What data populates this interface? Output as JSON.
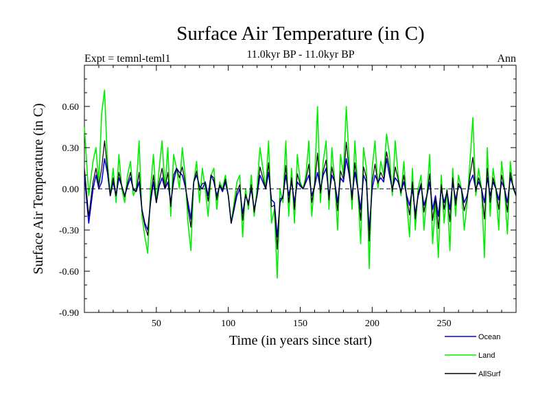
{
  "chart_data": {
    "type": "line",
    "title": "Surface Air Temperature (in C)",
    "subtitle": "11.0kyr BP - 11.0kyr BP",
    "left_label": "Expt = temnl-teml1",
    "right_label": "Ann",
    "xlabel": "Time (in years since start)",
    "ylabel": "Surface Air Temperature (in C)",
    "xlim": [
      0,
      300
    ],
    "ylim": [
      -0.9,
      0.9
    ],
    "x_ticks": [
      50,
      100,
      150,
      200,
      250
    ],
    "x_tick_labels": [
      "50",
      "100",
      "150",
      "200",
      "250"
    ],
    "y_ticks": [
      -0.9,
      -0.6,
      -0.3,
      0.0,
      0.3,
      0.6
    ],
    "y_tick_labels": [
      "-0.90",
      "-0.60",
      "-0.30",
      "0.00",
      "0.30",
      "0.60"
    ],
    "zero_line": true,
    "legend_position": "bottom-right",
    "series": [
      {
        "name": "Land",
        "color": "#00ee00",
        "x": [
          0,
          3,
          6,
          8,
          10,
          12,
          14,
          16,
          18,
          20,
          22,
          24,
          26,
          28,
          30,
          32,
          34,
          36,
          38,
          40,
          42,
          44,
          46,
          48,
          50,
          52,
          54,
          56,
          58,
          60,
          62,
          64,
          66,
          68,
          70,
          72,
          74,
          76,
          78,
          80,
          82,
          84,
          86,
          88,
          90,
          92,
          94,
          96,
          98,
          100,
          102,
          104,
          106,
          108,
          110,
          112,
          114,
          116,
          118,
          120,
          122,
          124,
          126,
          128,
          130,
          132,
          134,
          136,
          138,
          140,
          142,
          144,
          146,
          148,
          150,
          152,
          154,
          156,
          158,
          160,
          162,
          164,
          166,
          168,
          170,
          172,
          174,
          176,
          178,
          180,
          182,
          184,
          186,
          188,
          190,
          192,
          194,
          196,
          198,
          200,
          202,
          204,
          206,
          208,
          210,
          212,
          214,
          216,
          218,
          220,
          222,
          224,
          226,
          228,
          230,
          232,
          234,
          236,
          238,
          240,
          242,
          244,
          246,
          248,
          250,
          252,
          254,
          256,
          258,
          260,
          262,
          264,
          266,
          268,
          270,
          272,
          274,
          276,
          278,
          280,
          282,
          284,
          286,
          288,
          290,
          292,
          294,
          296,
          298,
          300
        ],
        "values": [
          0.45,
          -0.05,
          0.2,
          0.3,
          0.05,
          0.55,
          0.72,
          0.2,
          -0.05,
          0.15,
          -0.1,
          0.25,
          0.0,
          -0.1,
          0.1,
          0.2,
          -0.05,
          0.0,
          0.35,
          -0.2,
          -0.35,
          -0.47,
          0.0,
          0.25,
          -0.1,
          0.15,
          0.35,
          0.0,
          0.3,
          -0.2,
          0.25,
          0.15,
          0.0,
          0.3,
          0.1,
          -0.25,
          -0.45,
          0.05,
          0.2,
          -0.1,
          0.15,
          0.0,
          -0.2,
          0.1,
          0.15,
          -0.15,
          0.05,
          0.0,
          0.1,
          -0.05,
          -0.25,
          -0.1,
          0.05,
          0.1,
          -0.35,
          0.0,
          -0.15,
          0.1,
          -0.2,
          0.0,
          0.3,
          0.15,
          0.0,
          0.35,
          -0.25,
          -0.15,
          -0.65,
          0.0,
          -0.1,
          0.35,
          -0.2,
          0.15,
          -0.25,
          0.25,
          0.05,
          0.0,
          0.1,
          0.35,
          -0.2,
          0.05,
          0.6,
          -0.1,
          0.2,
          0.35,
          -0.15,
          0.3,
          0.05,
          -0.3,
          0.25,
          0.1,
          0.6,
          0.2,
          -0.15,
          0.35,
          0.0,
          -0.4,
          0.3,
          0.15,
          -0.58,
          0.15,
          0.35,
          0.0,
          0.2,
          0.1,
          0.4,
          0.25,
          -0.05,
          0.35,
          0.1,
          -0.05,
          0.2,
          -0.1,
          -0.35,
          0.15,
          -0.3,
          0.0,
          0.1,
          -0.3,
          -0.05,
          0.25,
          -0.4,
          -0.1,
          -0.5,
          0.1,
          -0.25,
          0.0,
          -0.45,
          0.15,
          -0.2,
          0.1,
          0.0,
          -0.3,
          -0.1,
          0.2,
          0.52,
          -0.05,
          0.15,
          0.0,
          -0.5,
          0.3,
          -0.2,
          0.15,
          0.0,
          -0.3,
          0.2,
          0.0,
          -0.33,
          0.2,
          0.0,
          -0.05
        ]
      },
      {
        "name": "Ocean",
        "color": "#0000dd",
        "x": [
          0,
          3,
          6,
          8,
          10,
          12,
          14,
          16,
          18,
          20,
          22,
          24,
          26,
          28,
          30,
          32,
          34,
          36,
          38,
          40,
          42,
          44,
          46,
          48,
          50,
          52,
          54,
          56,
          58,
          60,
          62,
          64,
          66,
          68,
          70,
          72,
          74,
          76,
          78,
          80,
          82,
          84,
          86,
          88,
          90,
          92,
          94,
          96,
          98,
          100,
          102,
          104,
          106,
          108,
          110,
          112,
          114,
          116,
          118,
          120,
          122,
          124,
          126,
          128,
          130,
          132,
          134,
          136,
          138,
          140,
          142,
          144,
          146,
          148,
          150,
          152,
          154,
          156,
          158,
          160,
          162,
          164,
          166,
          168,
          170,
          172,
          174,
          176,
          178,
          180,
          182,
          184,
          186,
          188,
          190,
          192,
          194,
          196,
          198,
          200,
          202,
          204,
          206,
          208,
          210,
          212,
          214,
          216,
          218,
          220,
          222,
          224,
          226,
          228,
          230,
          232,
          234,
          236,
          238,
          240,
          242,
          244,
          246,
          248,
          250,
          252,
          254,
          256,
          258,
          260,
          262,
          264,
          266,
          268,
          270,
          272,
          274,
          276,
          278,
          280,
          282,
          284,
          286,
          288,
          290,
          292,
          294,
          296,
          298,
          300
        ],
        "values": [
          0.1,
          -0.25,
          0.0,
          0.1,
          0.0,
          0.05,
          0.22,
          0.12,
          -0.05,
          0.05,
          -0.05,
          0.08,
          0.02,
          -0.05,
          0.02,
          0.08,
          0.0,
          -0.02,
          0.05,
          -0.15,
          -0.25,
          -0.3,
          -0.1,
          0.05,
          -0.1,
          0.02,
          0.08,
          0.0,
          0.05,
          -0.1,
          0.05,
          0.15,
          0.12,
          0.1,
          0.02,
          -0.1,
          -0.22,
          0.05,
          0.1,
          0.02,
          0.0,
          0.05,
          -0.05,
          0.1,
          0.05,
          -0.05,
          0.02,
          -0.02,
          0.05,
          -0.05,
          -0.25,
          -0.15,
          -0.05,
          0.0,
          -0.18,
          -0.05,
          -0.1,
          0.0,
          -0.15,
          -0.05,
          0.1,
          0.05,
          0.0,
          0.12,
          -0.08,
          -0.1,
          -0.35,
          -0.1,
          -0.05,
          0.1,
          -0.05,
          0.05,
          -0.1,
          0.05,
          0.02,
          0.0,
          0.05,
          0.1,
          -0.05,
          0.02,
          0.12,
          0.0,
          0.1,
          0.15,
          -0.05,
          0.1,
          0.05,
          -0.1,
          0.08,
          0.05,
          0.22,
          0.1,
          -0.05,
          0.12,
          0.0,
          -0.15,
          0.1,
          0.05,
          -0.3,
          0.0,
          0.1,
          0.05,
          0.08,
          0.05,
          0.22,
          0.1,
          0.0,
          0.08,
          0.05,
          -0.02,
          0.05,
          -0.05,
          -0.12,
          0.0,
          -0.18,
          -0.05,
          0.02,
          -0.12,
          -0.05,
          0.05,
          -0.15,
          -0.05,
          -0.2,
          0.0,
          -0.1,
          -0.02,
          -0.15,
          0.05,
          -0.08,
          0.02,
          0.0,
          -0.1,
          -0.05,
          0.05,
          0.1,
          0.0,
          0.05,
          0.0,
          -0.1,
          0.08,
          -0.05,
          0.05,
          0.0,
          -0.08,
          0.05,
          0.0,
          -0.1,
          0.08,
          0.02,
          -0.05
        ]
      },
      {
        "name": "AllSurf",
        "color": "#000000",
        "x": [
          0,
          3,
          6,
          8,
          10,
          12,
          14,
          16,
          18,
          20,
          22,
          24,
          26,
          28,
          30,
          32,
          34,
          36,
          38,
          40,
          42,
          44,
          46,
          48,
          50,
          52,
          54,
          56,
          58,
          60,
          62,
          64,
          66,
          68,
          70,
          72,
          74,
          76,
          78,
          80,
          82,
          84,
          86,
          88,
          90,
          92,
          94,
          96,
          98,
          100,
          102,
          104,
          106,
          108,
          110,
          112,
          114,
          116,
          118,
          120,
          122,
          124,
          126,
          128,
          130,
          132,
          134,
          136,
          138,
          140,
          142,
          144,
          146,
          148,
          150,
          152,
          154,
          156,
          158,
          160,
          162,
          164,
          166,
          168,
          170,
          172,
          174,
          176,
          178,
          180,
          182,
          184,
          186,
          188,
          190,
          192,
          194,
          196,
          198,
          200,
          202,
          204,
          206,
          208,
          210,
          212,
          214,
          216,
          218,
          220,
          222,
          224,
          226,
          228,
          230,
          232,
          234,
          236,
          238,
          240,
          242,
          244,
          246,
          248,
          250,
          252,
          254,
          256,
          258,
          260,
          262,
          264,
          266,
          268,
          270,
          272,
          274,
          276,
          278,
          280,
          282,
          284,
          286,
          288,
          290,
          292,
          294,
          296,
          298,
          300
        ],
        "values": [
          0.15,
          -0.2,
          0.05,
          0.15,
          0.02,
          0.15,
          0.35,
          0.15,
          -0.05,
          0.08,
          -0.05,
          0.12,
          0.02,
          -0.06,
          0.04,
          0.12,
          -0.01,
          -0.02,
          0.12,
          -0.16,
          -0.27,
          -0.34,
          -0.08,
          0.1,
          -0.1,
          0.05,
          0.15,
          0.0,
          0.12,
          -0.13,
          0.1,
          0.15,
          0.08,
          0.16,
          0.05,
          -0.14,
          -0.28,
          0.05,
          0.13,
          -0.01,
          0.04,
          0.04,
          -0.09,
          0.1,
          0.08,
          -0.08,
          0.03,
          -0.01,
          0.07,
          -0.05,
          -0.25,
          -0.13,
          -0.02,
          0.03,
          -0.23,
          -0.04,
          -0.12,
          0.03,
          -0.17,
          -0.04,
          0.16,
          0.08,
          0.0,
          0.19,
          -0.13,
          -0.12,
          -0.44,
          -0.07,
          -0.07,
          0.17,
          -0.1,
          0.08,
          -0.15,
          0.11,
          0.03,
          0.0,
          0.07,
          0.18,
          -0.1,
          0.03,
          0.26,
          -0.03,
          0.13,
          0.21,
          -0.08,
          0.16,
          0.05,
          -0.16,
          0.13,
          0.07,
          0.34,
          0.13,
          -0.08,
          0.19,
          0.0,
          -0.23,
          0.16,
          0.08,
          -0.38,
          0.05,
          0.18,
          0.04,
          0.12,
          0.07,
          0.27,
          0.15,
          -0.02,
          0.16,
          0.07,
          -0.03,
          0.1,
          -0.07,
          -0.19,
          0.05,
          -0.22,
          -0.03,
          0.04,
          -0.17,
          -0.05,
          0.11,
          -0.23,
          -0.07,
          -0.29,
          0.03,
          -0.15,
          -0.01,
          -0.24,
          0.08,
          -0.12,
          0.04,
          0.0,
          -0.16,
          -0.07,
          0.1,
          0.23,
          -0.02,
          0.08,
          0.0,
          -0.22,
          0.15,
          -0.1,
          0.08,
          0.0,
          -0.15,
          0.1,
          0.0,
          -0.17,
          0.12,
          0.01,
          -0.05
        ]
      }
    ],
    "legend": [
      {
        "name": "Ocean",
        "color": "#0000dd"
      },
      {
        "name": "Land",
        "color": "#00ee00"
      },
      {
        "name": "AllSurf",
        "color": "#000000"
      }
    ]
  }
}
